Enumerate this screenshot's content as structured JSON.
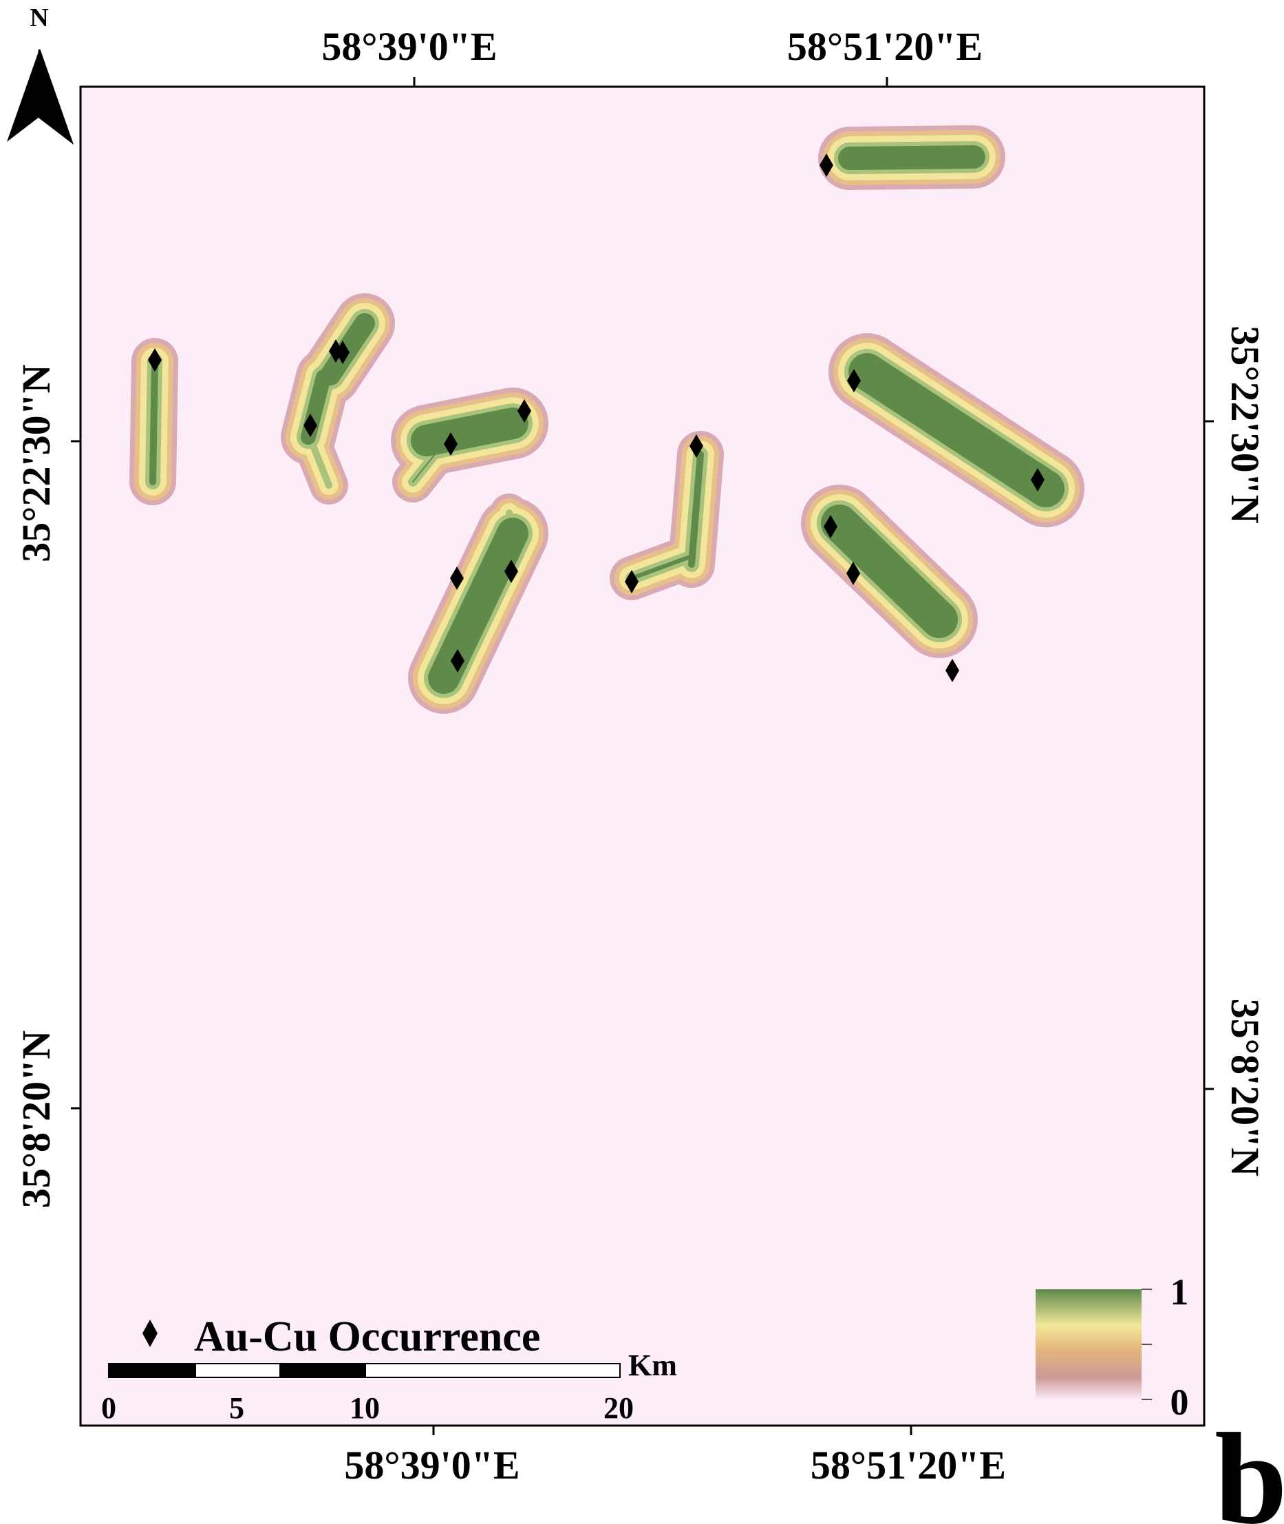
{
  "north_arrow": {
    "label": "N"
  },
  "coordinates": {
    "top": [
      "58°39'0\"E",
      "58°51'20\"E"
    ],
    "bottom": [
      "58°39'0\"E",
      "58°51'20\"E"
    ],
    "left": [
      "35°22'30\"N",
      "35°8'20\"N"
    ],
    "right": [
      "35°22'30\"N",
      "35°8'20\"N"
    ]
  },
  "legend": {
    "occurrence_label": "Au-Cu Occurrence",
    "gradient_max": "1",
    "gradient_min": "0",
    "gradient_colors": [
      "#5e8a4a",
      "#f2e89a",
      "#e3b57a",
      "#cc9a98",
      "#fbeaf8"
    ]
  },
  "scale_bar": {
    "unit": "Km",
    "ticks": [
      "0",
      "5",
      "10",
      "20"
    ]
  },
  "panel_letter": "b",
  "colors": {
    "background": "#fcedf9",
    "zone_outer": "#d9aab2",
    "zone_mid": "#e7c089",
    "zone_inner": "#f3e59a",
    "zone_high": "#a9c37c",
    "zone_core": "#5f8a4a"
  }
}
